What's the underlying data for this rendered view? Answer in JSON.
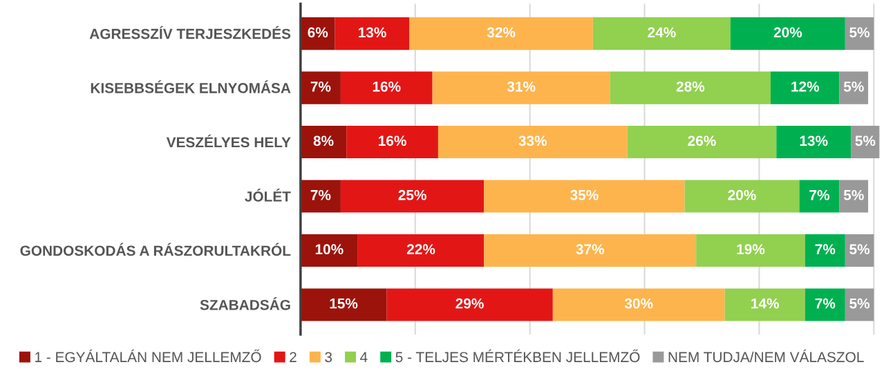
{
  "chart_data": {
    "type": "bar",
    "orientation": "horizontal",
    "stacked": true,
    "categories": [
      "AGRESSZÍV TERJESZKEDÉS",
      "KISEBBSÉGEK ELNYOMÁSA",
      "VESZÉLYES HELY",
      "JÓLÉT",
      "GONDOSKODÁS A RÁSZORULTAKRÓL",
      "SZABADSÁG"
    ],
    "series": [
      {
        "name": "1 - EGYÁLTALÁN NEM JELLEMZŐ",
        "color": "#9c130b",
        "values": [
          6,
          7,
          8,
          7,
          10,
          15
        ],
        "value_labels": [
          "6%",
          "7%",
          "8%",
          "7%",
          "10%",
          "15%"
        ]
      },
      {
        "name": "2",
        "color": "#e31616",
        "values": [
          13,
          16,
          16,
          25,
          22,
          29
        ],
        "value_labels": [
          "13%",
          "16%",
          "16%",
          "25%",
          "22%",
          "29%"
        ]
      },
      {
        "name": "3",
        "color": "#fdb44d",
        "values": [
          32,
          31,
          33,
          35,
          37,
          30
        ],
        "value_labels": [
          "32%",
          "31%",
          "33%",
          "35%",
          "37%",
          "30%"
        ]
      },
      {
        "name": "4",
        "color": "#92d050",
        "values": [
          24,
          28,
          26,
          20,
          19,
          14
        ],
        "value_labels": [
          "24%",
          "28%",
          "26%",
          "20%",
          "19%",
          "14%"
        ]
      },
      {
        "name": "5 - TELJES MÉRTÉKBEN JELLEMZŐ",
        "color": "#00b050",
        "values": [
          20,
          12,
          13,
          7,
          7,
          7
        ],
        "value_labels": [
          "20%",
          "12%",
          "13%",
          "7%",
          "7%",
          "7%"
        ]
      },
      {
        "name": "NEM TUDJA/NEM VÁLASZOL",
        "color": "#999999",
        "values": [
          5,
          5,
          5,
          5,
          5,
          5
        ],
        "value_labels": [
          "5%",
          "5%",
          "5%",
          "5%",
          "5%",
          "5%"
        ]
      }
    ],
    "tick_labels": "y",
    "grid": "x",
    "legend": "bottom"
  }
}
